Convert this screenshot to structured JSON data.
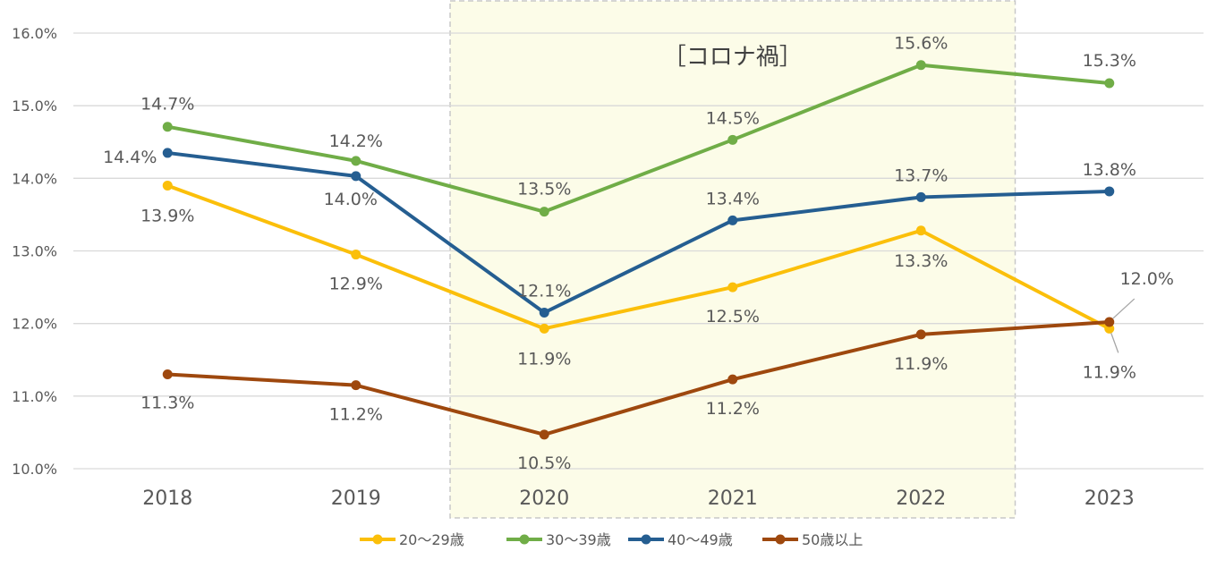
{
  "chart_data": {
    "type": "line",
    "title": "",
    "xlabel": "",
    "ylabel": "",
    "categories": [
      "2018",
      "2019",
      "2020",
      "2021",
      "2022",
      "2023"
    ],
    "ylim": [
      10.0,
      16.0
    ],
    "yticks": [
      10.0,
      11.0,
      12.0,
      13.0,
      14.0,
      15.0,
      16.0
    ],
    "ytick_labels": [
      "10.0%",
      "11.0%",
      "12.0%",
      "13.0%",
      "14.0%",
      "15.0%",
      "16.0%"
    ],
    "grid": true,
    "legend_position": "bottom",
    "highlight": {
      "label": "［コロナ禍］",
      "from": "2020",
      "to": "2022",
      "color": "#fcfce8"
    },
    "series": [
      {
        "name": "20～29歳",
        "color": "#fbbf0a",
        "values": [
          13.9,
          12.95,
          11.93,
          12.5,
          13.28,
          11.93
        ],
        "labels": [
          "13.9%",
          "12.9%",
          "11.9%",
          "12.5%",
          "13.3%",
          "11.9%"
        ]
      },
      {
        "name": "30～39歳",
        "color": "#70ad47",
        "values": [
          14.71,
          14.24,
          13.54,
          14.53,
          15.56,
          15.31
        ],
        "labels": [
          "14.7%",
          "14.2%",
          "13.5%",
          "14.5%",
          "15.6%",
          "15.3%"
        ]
      },
      {
        "name": "40～49歳",
        "color": "#255e91",
        "values": [
          14.35,
          14.03,
          12.15,
          13.42,
          13.74,
          13.82
        ],
        "labels": [
          "14.4%",
          "14.0%",
          "12.1%",
          "13.4%",
          "13.7%",
          "13.8%"
        ]
      },
      {
        "name": "50歳以上",
        "color": "#9e480e",
        "values": [
          11.3,
          11.15,
          10.47,
          11.23,
          11.85,
          12.02
        ],
        "labels": [
          "11.3%",
          "11.2%",
          "10.5%",
          "11.2%",
          "11.9%",
          "12.0%"
        ]
      }
    ]
  }
}
